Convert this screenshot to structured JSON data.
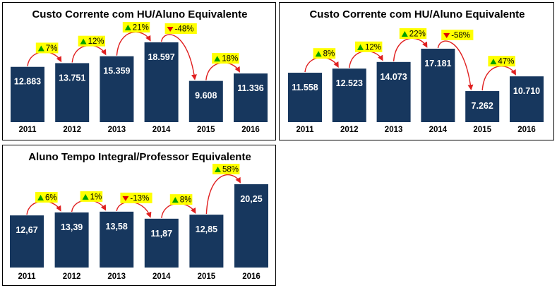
{
  "colors": {
    "bar": "#17375e",
    "arrow": "#e02020",
    "badge_bg": "#ffff00",
    "up": "#00a000",
    "down": "#e00000"
  },
  "chart_data": [
    {
      "type": "bar",
      "title": "Custo Corrente com HU/Aluno Equivalente",
      "categories": [
        "2011",
        "2012",
        "2013",
        "2014",
        "2015",
        "2016"
      ],
      "values": [
        12883,
        13751,
        15359,
        18597,
        9608,
        11336
      ],
      "labels": [
        "12.883",
        "13.751",
        "15.359",
        "18.597",
        "9.608",
        "11.336"
      ],
      "changes": [
        {
          "text": "7%",
          "dir": "up"
        },
        {
          "text": "12%",
          "dir": "up"
        },
        {
          "text": "21%",
          "dir": "up"
        },
        {
          "text": "-48%",
          "dir": "down"
        },
        {
          "text": "18%",
          "dir": "up"
        }
      ],
      "ylim": [
        0,
        18597
      ]
    },
    {
      "type": "bar",
      "title": "Custo Corrente com HU/Aluno Equivalente",
      "categories": [
        "2011",
        "2012",
        "2013",
        "2014",
        "2015",
        "2016"
      ],
      "values": [
        11558,
        12523,
        14073,
        17181,
        7262,
        10710
      ],
      "labels": [
        "11.558",
        "12.523",
        "14.073",
        "17.181",
        "7.262",
        "10.710"
      ],
      "changes": [
        {
          "text": "8%",
          "dir": "up"
        },
        {
          "text": "12%",
          "dir": "up"
        },
        {
          "text": "22%",
          "dir": "up"
        },
        {
          "text": "-58%",
          "dir": "down"
        },
        {
          "text": "47%",
          "dir": "up"
        }
      ],
      "ylim": [
        0,
        17181
      ]
    },
    {
      "type": "bar",
      "title": "Aluno Tempo Integral/Professor Equivalente",
      "categories": [
        "2011",
        "2012",
        "2013",
        "2014",
        "2015",
        "2016"
      ],
      "values": [
        12.67,
        13.39,
        13.58,
        11.87,
        12.85,
        20.25
      ],
      "labels": [
        "12,67",
        "13,39",
        "13,58",
        "11,87",
        "12,85",
        "20,25"
      ],
      "changes": [
        {
          "text": "6%",
          "dir": "up"
        },
        {
          "text": "1%",
          "dir": "up"
        },
        {
          "text": "-13%",
          "dir": "down"
        },
        {
          "text": "8%",
          "dir": "up"
        },
        {
          "text": "58%",
          "dir": "up"
        }
      ],
      "ylim": [
        0,
        20.25
      ]
    }
  ]
}
